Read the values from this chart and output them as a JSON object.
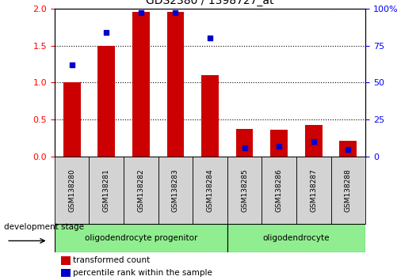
{
  "title": "GDS2380 / 1398727_at",
  "samples": [
    "GSM138280",
    "GSM138281",
    "GSM138282",
    "GSM138283",
    "GSM138284",
    "GSM138285",
    "GSM138286",
    "GSM138287",
    "GSM138288"
  ],
  "red_values": [
    1.0,
    1.5,
    1.95,
    1.95,
    1.1,
    0.38,
    0.36,
    0.43,
    0.22
  ],
  "blue_percentile": [
    62,
    84,
    97,
    97,
    80,
    6,
    7,
    10,
    5
  ],
  "ylim_left": [
    0,
    2
  ],
  "ylim_right": [
    0,
    100
  ],
  "yticks_left": [
    0,
    0.5,
    1.0,
    1.5,
    2.0
  ],
  "yticks_right": [
    0,
    25,
    50,
    75,
    100
  ],
  "group1_label": "oligodendrocyte progenitor",
  "group1_count": 5,
  "group2_label": "oligodendrocyte",
  "group2_count": 4,
  "group_color": "#90EE90",
  "dev_label": "development stage",
  "legend_red": "transformed count",
  "legend_blue": "percentile rank within the sample",
  "bar_color": "#CC0000",
  "dot_color": "#0000CC",
  "label_bg": "#D3D3D3",
  "bar_width": 0.5,
  "dot_size": 22
}
